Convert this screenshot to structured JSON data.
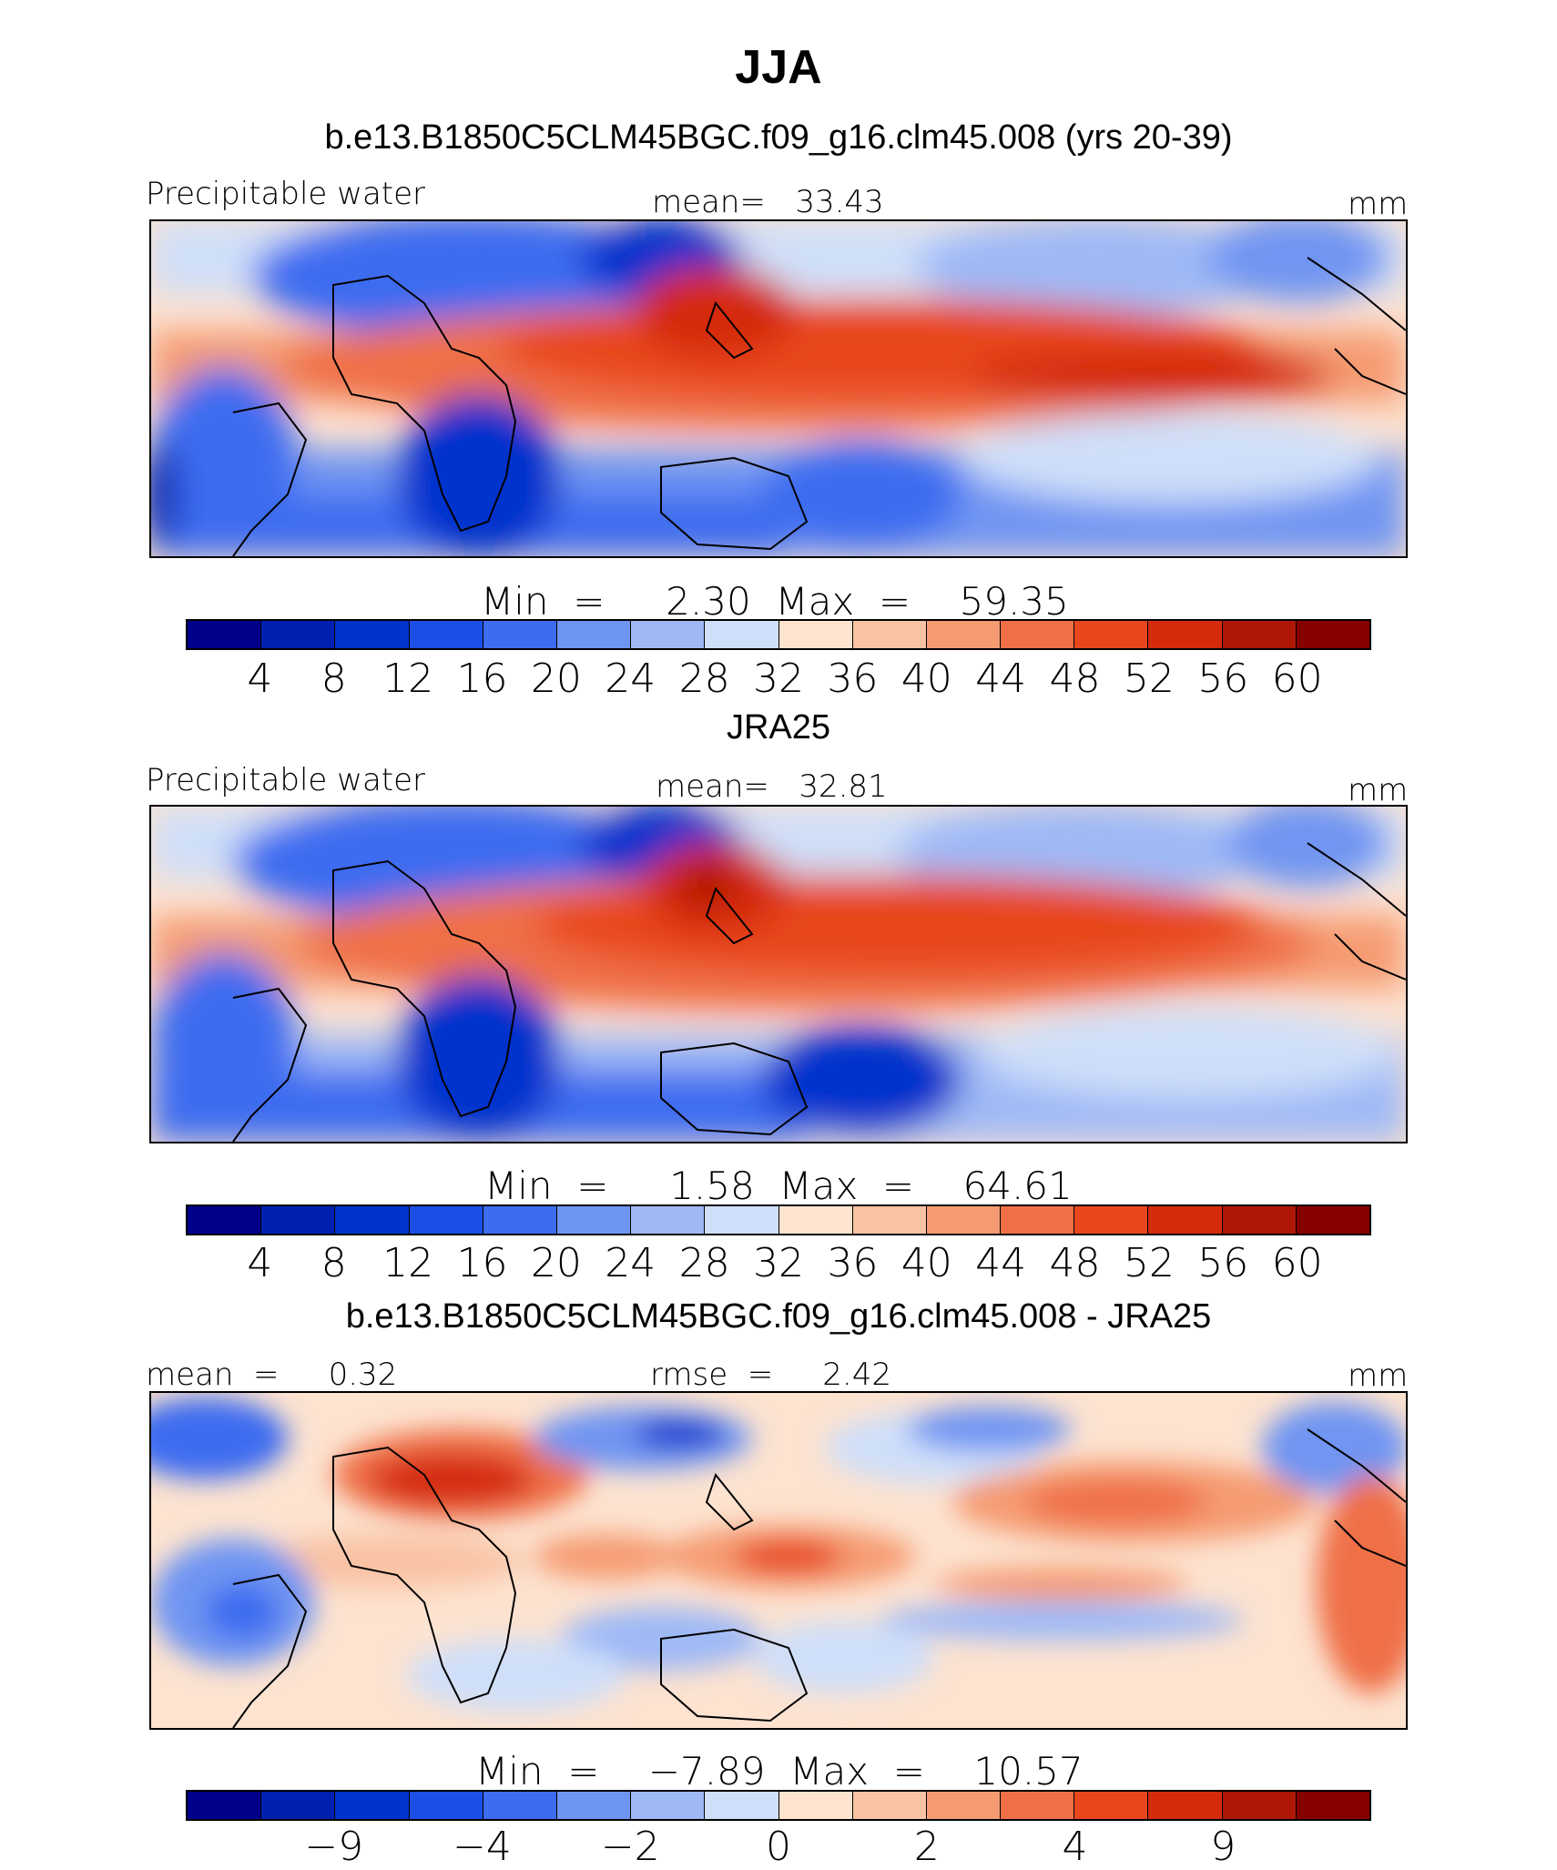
{
  "figure": {
    "title": "JJA"
  },
  "panels": [
    {
      "id": "model",
      "subtitle": "b.e13.B1850C5CLM45BGC.f09_g16.clm45.008 (yrs 20-39)",
      "left_label": "Precipitable water",
      "center_label": "mean=   33.43",
      "right_label": "mm",
      "min_max": "Min  =     2.30  Max  =    59.35",
      "colorbar": {
        "colors": [
          "#00008b",
          "#0020b0",
          "#0033cc",
          "#1c4fe6",
          "#3d6cf0",
          "#6f95f2",
          "#9fb9f6",
          "#cfdff9",
          "#fde3d0",
          "#f9c3a4",
          "#f59b72",
          "#ef7047",
          "#e8471d",
          "#d52b0c",
          "#ae1706",
          "#870000"
        ],
        "ticks": [
          "4",
          "8",
          "12",
          "16",
          "20",
          "24",
          "28",
          "32",
          "36",
          "40",
          "44",
          "48",
          "52",
          "56",
          "60"
        ]
      }
    },
    {
      "id": "obs",
      "subtitle": "JRA25",
      "left_label": "Precipitable water",
      "center_label": "mean=   32.81",
      "right_label": "mm",
      "min_max": "Min  =     1.58  Max  =    64.61",
      "colorbar": {
        "colors": [
          "#00008b",
          "#0020b0",
          "#0033cc",
          "#1c4fe6",
          "#3d6cf0",
          "#6f95f2",
          "#9fb9f6",
          "#cfdff9",
          "#fde3d0",
          "#f9c3a4",
          "#f59b72",
          "#ef7047",
          "#e8471d",
          "#d52b0c",
          "#ae1706",
          "#870000"
        ],
        "ticks": [
          "4",
          "8",
          "12",
          "16",
          "20",
          "24",
          "28",
          "32",
          "36",
          "40",
          "44",
          "48",
          "52",
          "56",
          "60"
        ]
      }
    },
    {
      "id": "diff",
      "subtitle": "b.e13.B1850C5CLM45BGC.f09_g16.clm45.008 - JRA25",
      "left_label": "mean  =     0.32",
      "center_label": "rmse  =     2.42",
      "right_label": "mm",
      "min_max": "Min  =    −7.89  Max  =    10.57",
      "colorbar": {
        "colors": [
          "#00008b",
          "#0020b0",
          "#0033cc",
          "#1c4fe6",
          "#3d6cf0",
          "#6f95f2",
          "#9fb9f6",
          "#cfdff9",
          "#fde3d0",
          "#f9c3a4",
          "#f59b72",
          "#ef7047",
          "#e8471d",
          "#d52b0c",
          "#ae1706",
          "#870000"
        ],
        "ticks": [
          "−9",
          "−4",
          "−2",
          "0",
          "2",
          "4",
          "9"
        ]
      }
    }
  ]
}
